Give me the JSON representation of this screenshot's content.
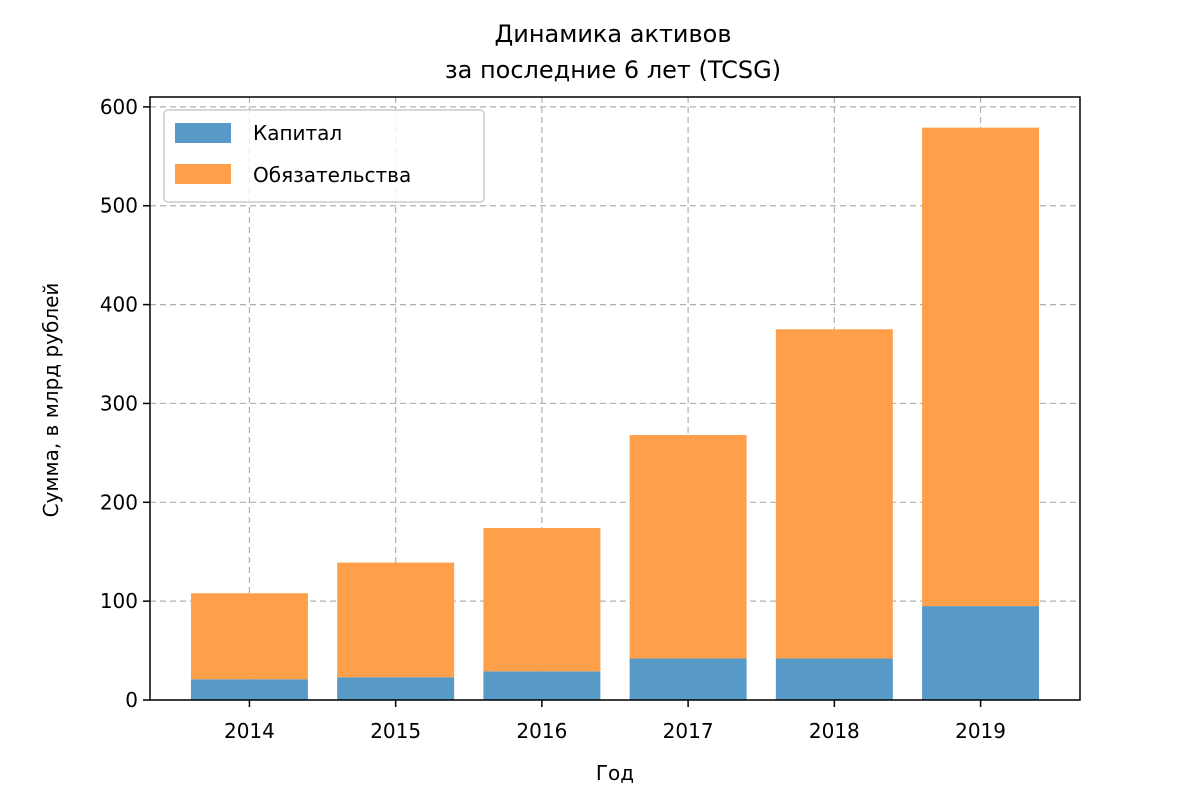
{
  "chart_data": {
    "type": "bar",
    "stacked": true,
    "title_lines": [
      "Динамика активов",
      "за последние 6 лет (TCSG)"
    ],
    "xlabel": "Год",
    "ylabel": "Сумма, в млрд рублей",
    "categories": [
      "2014",
      "2015",
      "2016",
      "2017",
      "2018",
      "2019"
    ],
    "series": [
      {
        "name": "Капитал",
        "color": "#5799c7",
        "values": [
          21,
          23,
          29,
          42,
          42,
          95
        ]
      },
      {
        "name": "Обязательства",
        "color": "#ff9f4a",
        "values": [
          87,
          116,
          145,
          226,
          333,
          484
        ]
      }
    ],
    "ylim": [
      0,
      610
    ],
    "yticks": [
      0,
      100,
      200,
      300,
      400,
      500,
      600
    ],
    "grid": true,
    "legend_position": "top-left"
  }
}
